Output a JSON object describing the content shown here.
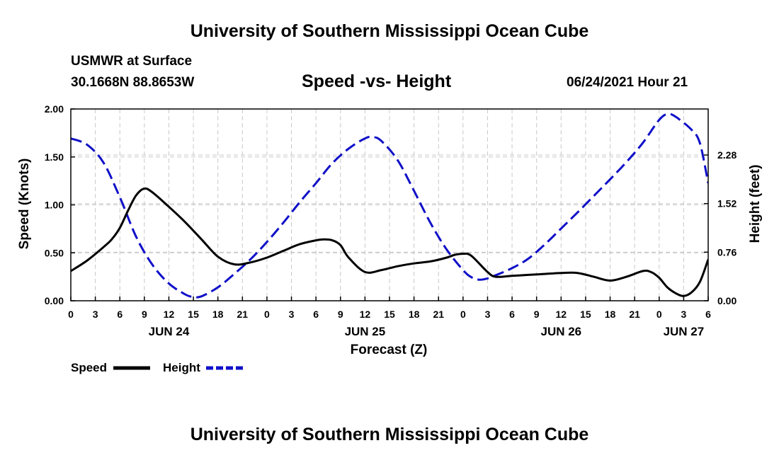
{
  "header": {
    "title": "University of Southern Mississippi Ocean Cube",
    "station": "USMWR at Surface",
    "coords": "30.1668N  88.8653W",
    "datetime": "06/24/2021 Hour 21"
  },
  "footer": {
    "title": "University of Southern Mississippi Ocean Cube"
  },
  "colors": {
    "speed": "#000000",
    "height": "#1010c8",
    "grid": "#c8c8c8"
  },
  "chart_data": {
    "type": "line",
    "title": "Speed -vs- Height",
    "xlabel": "Forecast (Z)",
    "ylabel": "Speed (Knots)",
    "y2label": "Height (feet)",
    "xlim": [
      0,
      78
    ],
    "ylim": [
      0,
      2.0
    ],
    "y2lim": [
      0,
      3.0
    ],
    "grid": true,
    "x_ticks": [
      0,
      3,
      6,
      9,
      12,
      15,
      18,
      21,
      24,
      27,
      30,
      33,
      36,
      39,
      42,
      45,
      48,
      51,
      54,
      57,
      60,
      63,
      66,
      69,
      72,
      75,
      78
    ],
    "x_tick_labels": [
      "0",
      "3",
      "6",
      "9",
      "12",
      "15",
      "18",
      "21",
      "0",
      "3",
      "6",
      "9",
      "12",
      "15",
      "18",
      "21",
      "0",
      "3",
      "6",
      "9",
      "12",
      "15",
      "18",
      "21",
      "0",
      "3",
      "6"
    ],
    "y_ticks": [
      0.0,
      0.5,
      1.0,
      1.5,
      2.0
    ],
    "y_tick_labels": [
      "0.00",
      "0.50",
      "1.00",
      "1.50",
      "2.00"
    ],
    "y2_ticks": [
      0.0,
      0.76,
      1.52,
      2.28
    ],
    "y2_tick_labels": [
      "0.00",
      "0.76",
      "1.52",
      "2.28"
    ],
    "date_labels": [
      {
        "x": 12,
        "label": "JUN 24"
      },
      {
        "x": 36,
        "label": "JUN 25"
      },
      {
        "x": 60,
        "label": "JUN 26"
      },
      {
        "x": 75,
        "label": "JUN 27"
      }
    ],
    "legend_position": "bottom-left",
    "series": [
      {
        "name": "Speed",
        "axis": "left",
        "style": "solid",
        "x": [
          0,
          2,
          4,
          5,
          6,
          7,
          8,
          9,
          10,
          12,
          14,
          16,
          18,
          20,
          22,
          24,
          26,
          28,
          30,
          31,
          32,
          33,
          34,
          36,
          38,
          40,
          42,
          44,
          46,
          47,
          48,
          49,
          51,
          52,
          54,
          56,
          58,
          60,
          62,
          64,
          66,
          68,
          70,
          71,
          72,
          73,
          74,
          75,
          76,
          77,
          78
        ],
        "values": [
          0.31,
          0.42,
          0.56,
          0.64,
          0.76,
          0.94,
          1.1,
          1.17,
          1.13,
          0.98,
          0.82,
          0.64,
          0.46,
          0.38,
          0.4,
          0.45,
          0.52,
          0.59,
          0.63,
          0.64,
          0.63,
          0.58,
          0.45,
          0.3,
          0.32,
          0.36,
          0.39,
          0.41,
          0.45,
          0.48,
          0.49,
          0.47,
          0.3,
          0.25,
          0.26,
          0.27,
          0.28,
          0.29,
          0.29,
          0.25,
          0.21,
          0.25,
          0.31,
          0.3,
          0.24,
          0.14,
          0.08,
          0.05,
          0.09,
          0.2,
          0.43
        ]
      },
      {
        "name": "Height",
        "axis": "right",
        "style": "dashed",
        "x": [
          0,
          2,
          4,
          6,
          8,
          10,
          12,
          14,
          15,
          16,
          18,
          20,
          22,
          24,
          26,
          28,
          30,
          32,
          34,
          36,
          37,
          38,
          40,
          42,
          44,
          46,
          48,
          49,
          50,
          51,
          52,
          54,
          56,
          58,
          60,
          62,
          64,
          66,
          68,
          70,
          72,
          73,
          74,
          76,
          77,
          78
        ],
        "values": [
          2.54,
          2.44,
          2.16,
          1.62,
          1.0,
          0.56,
          0.27,
          0.1,
          0.06,
          0.07,
          0.21,
          0.42,
          0.65,
          0.92,
          1.22,
          1.54,
          1.84,
          2.15,
          2.38,
          2.54,
          2.56,
          2.5,
          2.2,
          1.72,
          1.22,
          0.8,
          0.48,
          0.37,
          0.33,
          0.35,
          0.4,
          0.51,
          0.66,
          0.88,
          1.13,
          1.38,
          1.64,
          1.9,
          2.17,
          2.47,
          2.83,
          2.92,
          2.88,
          2.67,
          2.46,
          1.84
        ]
      }
    ]
  }
}
